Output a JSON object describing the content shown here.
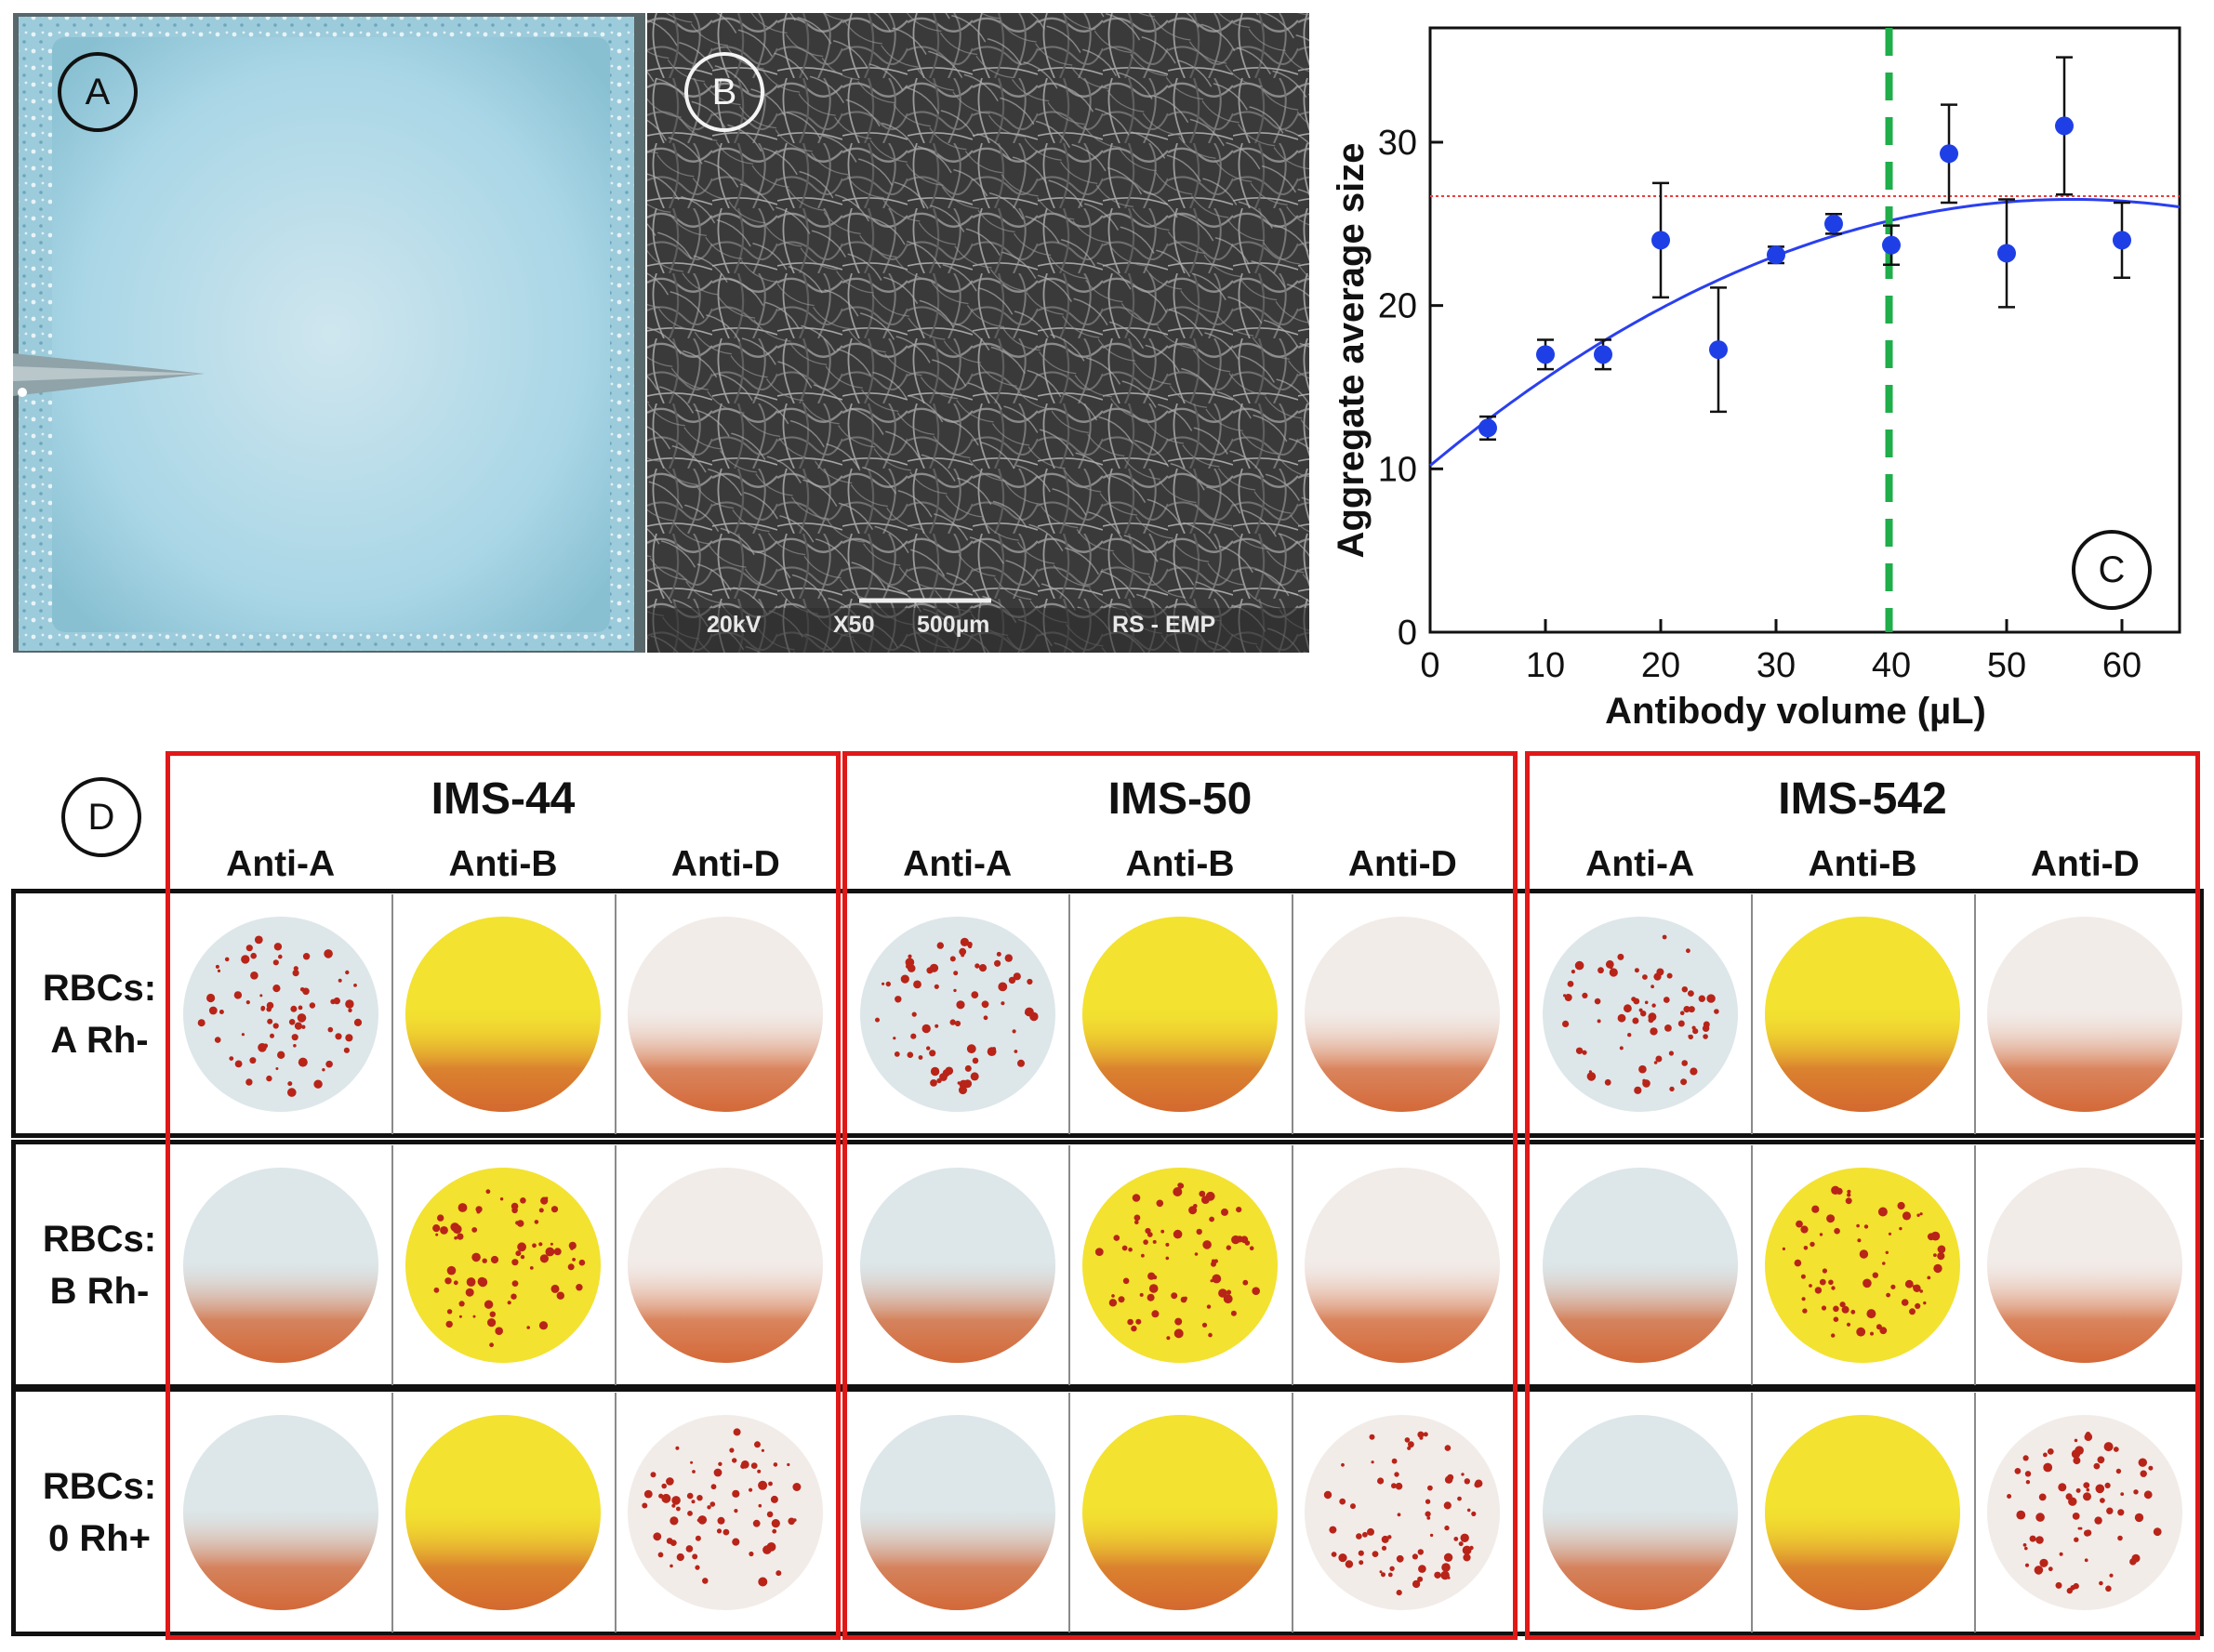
{
  "panels": {
    "a": {
      "badge": "A"
    },
    "b": {
      "badge": "B",
      "sem_voltage": "20kV",
      "sem_magnification": "X50",
      "sem_scale_bar": "500µm",
      "sem_lab": "RS - EMP"
    },
    "c": {
      "badge": "C"
    },
    "d": {
      "badge": "D"
    }
  },
  "chart_data": {
    "type": "scatter",
    "xlabel": "Antibody volume (µL)",
    "ylabel": "Aggregate average size",
    "xlim": [
      0,
      65
    ],
    "ylim": [
      0,
      37
    ],
    "xticks": [
      0,
      10,
      20,
      30,
      40,
      50,
      60
    ],
    "yticks": [
      0,
      10,
      20,
      30
    ],
    "series": [
      {
        "x": [
          5,
          10,
          15,
          20,
          25,
          30,
          35,
          40,
          45,
          50,
          55,
          60
        ],
        "y": [
          12.5,
          17.0,
          17.0,
          24.0,
          17.3,
          23.1,
          25.0,
          23.7,
          29.3,
          23.2,
          31.0,
          24.0
        ],
        "yerr": [
          0.7,
          0.9,
          0.9,
          3.5,
          3.8,
          0.5,
          0.6,
          1.2,
          3.0,
          3.3,
          4.2,
          2.3
        ],
        "color": "#1f3fe6"
      }
    ],
    "fit_curve": {
      "kind": "quadratic",
      "y_at_0": 10.2,
      "peak_x": 55.6,
      "peak_y": 26.5,
      "color": "#2a3ff0"
    },
    "reference_lines": [
      {
        "orientation": "horizontal",
        "value": 26.7,
        "style": "dotted",
        "color": "#e64040"
      },
      {
        "orientation": "vertical",
        "value": 39.8,
        "style": "dashed",
        "color": "#1fae4a"
      }
    ],
    "grid": false
  },
  "matrix": {
    "groups": [
      "IMS-44",
      "IMS-50",
      "IMS-542"
    ],
    "columns": [
      "Anti-A",
      "Anti-B",
      "Anti-D"
    ],
    "rows": [
      {
        "line1": "RBCs:",
        "line2": "A Rh-"
      },
      {
        "line1": "RBCs:",
        "line2": "B Rh-"
      },
      {
        "line1": "RBCs:",
        "line2": "0 Rh+"
      }
    ],
    "colors": {
      "group_border": "#e01818",
      "row_border": "#111111",
      "anti_a_base": "#dde7ea",
      "anti_b_base": "#f3e230",
      "anti_d_base": "#f2ece9",
      "aggregate": "#b82418",
      "settled_blood": "#d2622f"
    },
    "reactions": [
      [
        "agglutination",
        "diffusion",
        "diffusion"
      ],
      [
        "diffusion",
        "agglutination",
        "diffusion"
      ],
      [
        "diffusion",
        "diffusion",
        "agglutination"
      ]
    ]
  }
}
